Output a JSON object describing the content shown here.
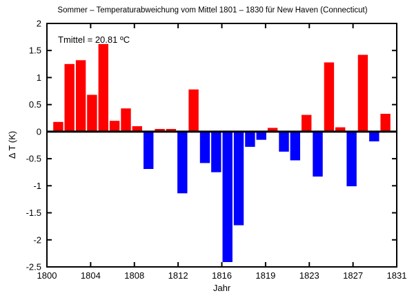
{
  "window": {
    "background": "#ffffff"
  },
  "chart_data": {
    "type": "bar",
    "title": "Sommer – Temperaturabweichung vom Mittel 1801 – 1830 für New Haven (Connecticut)",
    "xlabel": "Jahr",
    "ylabel": "Δ T (K)",
    "annotation": "Tmittel = 20.81 ºC",
    "xlim": [
      1800,
      1831
    ],
    "ylim": [
      -2.5,
      2
    ],
    "grid": false,
    "legend": "none",
    "x_tick_labels": [
      "1800",
      "1804",
      "1808",
      "1812",
      "1816",
      "1819",
      "1823",
      "1827",
      "1831"
    ],
    "y_ticks": [
      2,
      1.5,
      1,
      0.5,
      0,
      -0.5,
      -1,
      -1.5,
      -2,
      -2.5
    ],
    "y_tick_labels": [
      "2",
      "1.5",
      "1",
      "0.5",
      "0",
      "-0.5",
      "-1",
      "-1.5",
      "-2",
      "-2.5"
    ],
    "colors": {
      "positive": "#ff0000",
      "negative": "#0000ff",
      "axis": "#000000",
      "background": "#ffffff"
    },
    "series": [
      {
        "name": "Temperaturabweichung",
        "x": [
          1801,
          1802,
          1803,
          1804,
          1805,
          1806,
          1807,
          1808,
          1809,
          1810,
          1811,
          1812,
          1813,
          1814,
          1815,
          1816,
          1817,
          1818,
          1819,
          1820,
          1821,
          1822,
          1823,
          1824,
          1825,
          1826,
          1827,
          1828,
          1829,
          1830
        ],
        "values": [
          0.18,
          1.25,
          1.32,
          0.68,
          1.62,
          0.2,
          0.43,
          0.1,
          -0.69,
          0.05,
          0.05,
          -1.14,
          0.78,
          -0.58,
          -0.75,
          -2.41,
          -1.73,
          -0.28,
          -0.15,
          0.07,
          -0.37,
          -0.53,
          0.31,
          -0.83,
          1.28,
          0.08,
          -1.01,
          1.42,
          -0.18,
          0.33
        ]
      }
    ]
  }
}
